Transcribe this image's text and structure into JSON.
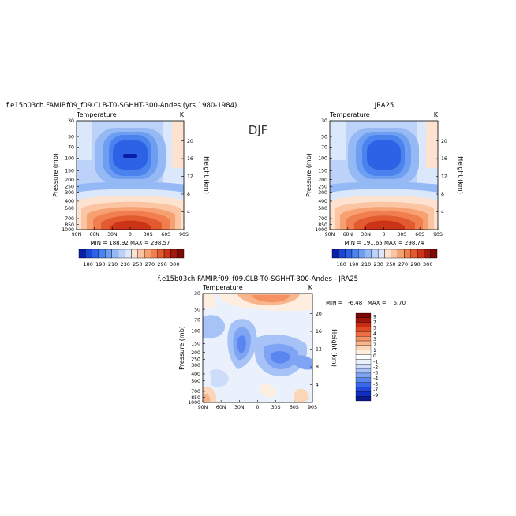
{
  "figure": {
    "title": "DJF"
  },
  "colors": {
    "ramp": [
      "#0a1ea8",
      "#1a46d6",
      "#2e62e6",
      "#4a82ee",
      "#6e9ef2",
      "#95b9f5",
      "#bcd2f8",
      "#dbe8fb",
      "#fde3cf",
      "#fbc4a2",
      "#f7a173",
      "#f07e4e",
      "#e35a2e",
      "#cc3419",
      "#a3180d",
      "#7d0a06"
    ],
    "diff_ramp": [
      "#0a1a8c",
      "#102ec4",
      "#2048dc",
      "#3a68ea",
      "#5a86f0",
      "#7ea4f3",
      "#a6c2f6",
      "#cddcf9",
      "#eaf1fc",
      "#ffffff",
      "#fdeee0",
      "#fbd6b8",
      "#f8b58c",
      "#f49264",
      "#ee6e42",
      "#e04b26",
      "#c62d12",
      "#a0140a",
      "#7a0505"
    ]
  },
  "panels": [
    {
      "subtitle": "f.e15b03ch.FAMIP.f09_f09.CLB-T0-SGHHT-300-Andes (yrs 1980-1984)",
      "left_label": "Temperature",
      "right_label": "K",
      "y_title": "Pressure (mb)",
      "y2_title": "Height (km)",
      "stats": "MIN = 188.92   MAX = 298.57"
    },
    {
      "subtitle": "JRA25",
      "left_label": "Temperature",
      "right_label": "K",
      "y_title": "Pressure (mb)",
      "y2_title": "Height (km)",
      "stats": "MIN = 191.65   MAX = 298.74"
    },
    {
      "subtitle": "f.e15b03ch.FAMIP.f09_f09.CLB-T0-SGHHT-300-Andes - JRA25",
      "left_label": "Temperature",
      "right_label": "K",
      "y_title": "Pressure (mb)",
      "y2_title": "Height (km)",
      "stats": "MIN =   -6.48   MAX =    6.70"
    }
  ],
  "chart_data": [
    {
      "type": "heatmap",
      "title": "f.e15b03ch.FAMIP.f09_f09.CLB-T0-SGHHT-300-Andes (yrs 1980-1984)",
      "variable": "Temperature",
      "units": "K",
      "x_ticks": [
        "90N",
        "60N",
        "30N",
        "0",
        "30S",
        "60S",
        "90S"
      ],
      "y_ticks": [
        "30",
        "50",
        "70",
        "100",
        "150",
        "200",
        "250",
        "300",
        "400",
        "500",
        "700",
        "850",
        "1000"
      ],
      "y2_ticks": [
        "20",
        "16",
        "12",
        "8",
        "4"
      ],
      "ylabel": "Pressure (mb)",
      "y2label": "Height (km)",
      "y_scale": "log",
      "min": 188.92,
      "max": 298.57,
      "colorbar_labels": [
        "180",
        "190",
        "210",
        "230",
        "250",
        "270",
        "290",
        "300"
      ]
    },
    {
      "type": "heatmap",
      "title": "JRA25",
      "variable": "Temperature",
      "units": "K",
      "x_ticks": [
        "90N",
        "60N",
        "30N",
        "0",
        "30S",
        "60S",
        "90S"
      ],
      "y_ticks": [
        "30",
        "50",
        "70",
        "100",
        "150",
        "200",
        "250",
        "300",
        "400",
        "500",
        "700",
        "850",
        "1000"
      ],
      "y2_ticks": [
        "20",
        "16",
        "12",
        "8",
        "4"
      ],
      "ylabel": "Pressure (mb)",
      "y2label": "Height (km)",
      "y_scale": "log",
      "min": 191.65,
      "max": 298.74,
      "colorbar_labels": [
        "180",
        "190",
        "210",
        "230",
        "250",
        "270",
        "290",
        "300"
      ]
    },
    {
      "type": "heatmap",
      "title": "f.e15b03ch.FAMIP.f09_f09.CLB-T0-SGHHT-300-Andes - JRA25",
      "variable": "Temperature",
      "units": "K",
      "x_ticks": [
        "90N",
        "60N",
        "30N",
        "0",
        "30S",
        "60S",
        "90S"
      ],
      "y_ticks": [
        "30",
        "50",
        "70",
        "100",
        "150",
        "200",
        "250",
        "300",
        "400",
        "500",
        "700",
        "850",
        "1000"
      ],
      "y2_ticks": [
        "20",
        "16",
        "12",
        "8",
        "4"
      ],
      "ylabel": "Pressure (mb)",
      "y2label": "Height (km)",
      "y_scale": "log",
      "min": -6.48,
      "max": 6.7,
      "colorbar_labels": [
        "9",
        "7",
        "5",
        "4",
        "3",
        "2",
        "1",
        "0",
        "-1",
        "-2",
        "-3",
        "-4",
        "-5",
        "-7",
        "-9"
      ]
    }
  ]
}
